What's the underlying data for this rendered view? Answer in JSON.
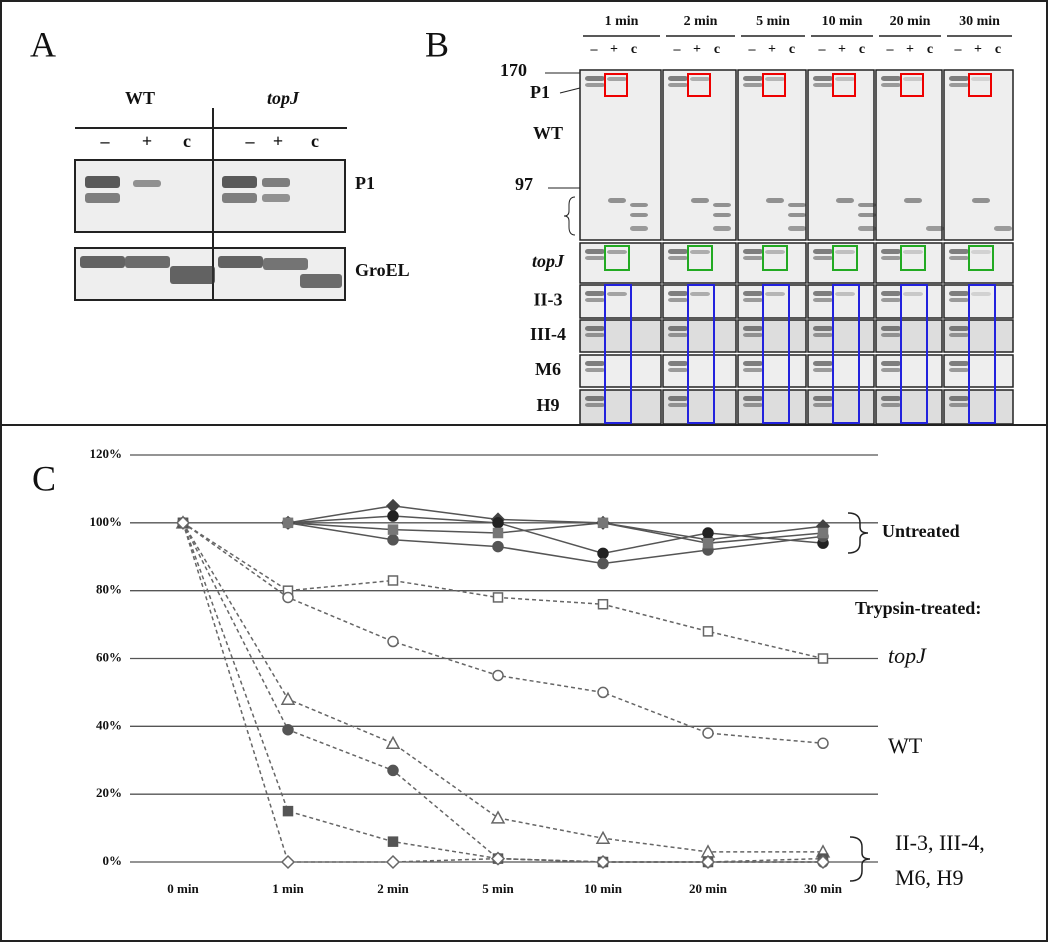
{
  "panel_a": {
    "label": "A",
    "groups": [
      "WT",
      "topJ"
    ],
    "lanes": [
      "–",
      "+",
      "c"
    ],
    "rows": [
      "P1",
      "GroEL"
    ]
  },
  "panel_b": {
    "label": "B",
    "times": [
      "1 min",
      "2 min",
      "5 min",
      "10 min",
      "20 min",
      "30 min"
    ],
    "lanes": [
      "–",
      "+",
      "c"
    ],
    "markers": [
      "170",
      "97"
    ],
    "band_label": "P1",
    "rows": [
      "WT",
      "topJ",
      "II-3",
      "III-4",
      "M6",
      "H9"
    ]
  },
  "chart_data": {
    "type": "line",
    "label": "C",
    "categories": [
      "0 min",
      "1 min",
      "2 min",
      "5 min",
      "10 min",
      "20 min",
      "30 min"
    ],
    "ylim": [
      0,
      120
    ],
    "yticks": [
      {
        "value": 0,
        "label": "0%"
      },
      {
        "value": 20,
        "label": "20%"
      },
      {
        "value": 40,
        "label": "40%"
      },
      {
        "value": 60,
        "label": "60%"
      },
      {
        "value": 80,
        "label": "80%"
      },
      {
        "value": 100,
        "label": "100%"
      },
      {
        "value": 120,
        "label": "120%"
      }
    ],
    "grid": true,
    "series": [
      {
        "color": "#444444",
        "marker": "filled-diamond",
        "dashed": false,
        "values": [
          null,
          100,
          105,
          101,
          100,
          95,
          99
        ]
      },
      {
        "color": "#222222",
        "marker": "filled-circle",
        "dashed": false,
        "values": [
          null,
          100,
          102,
          100,
          91,
          97,
          94
        ]
      },
      {
        "color": "#555555",
        "marker": "filled-circle",
        "dashed": false,
        "values": [
          null,
          100,
          95,
          93,
          88,
          92,
          96
        ]
      },
      {
        "color": "#777777",
        "marker": "filled-square",
        "dashed": false,
        "values": [
          null,
          100,
          98,
          97,
          100,
          94,
          97
        ]
      },
      {
        "name": "topJ",
        "color": "#666666",
        "marker": "open-square",
        "dashed": true,
        "values": [
          100,
          80,
          83,
          78,
          76,
          68,
          60
        ]
      },
      {
        "name": "WT",
        "color": "#666666",
        "marker": "open-circle",
        "dashed": true,
        "values": [
          100,
          78,
          65,
          55,
          50,
          38,
          35
        ]
      },
      {
        "color": "#666666",
        "marker": "open-triangle",
        "dashed": true,
        "values": [
          100,
          48,
          35,
          13,
          7,
          3,
          3
        ]
      },
      {
        "color": "#555555",
        "marker": "filled-circle",
        "dashed": true,
        "values": [
          100,
          39,
          27,
          1,
          0,
          0,
          0
        ]
      },
      {
        "color": "#555555",
        "marker": "filled-square",
        "dashed": true,
        "values": [
          100,
          15,
          6,
          1,
          0,
          0,
          1
        ]
      },
      {
        "color": "#666666",
        "marker": "open-diamond",
        "dashed": true,
        "values": [
          100,
          0,
          0,
          1,
          0,
          0,
          0
        ]
      }
    ],
    "annotations": [
      "Untreated",
      "Trypsin-treated:",
      "II-3, III-4,",
      "M6, H9"
    ]
  }
}
